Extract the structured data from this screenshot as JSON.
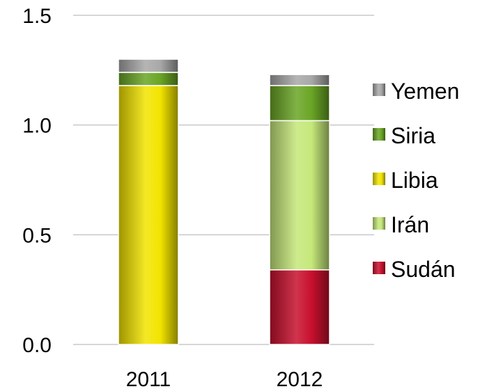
{
  "chart_data": {
    "type": "bar",
    "stacked": true,
    "categories": [
      "2011",
      "2012"
    ],
    "series": [
      {
        "name": "Sudán",
        "values": [
          0,
          0.34
        ],
        "color": "#c8102e"
      },
      {
        "name": "Irán",
        "values": [
          0,
          0.68
        ],
        "color": "#c5e87a"
      },
      {
        "name": "Libia",
        "values": [
          1.18,
          0
        ],
        "color": "#f2e400"
      },
      {
        "name": "Siria",
        "values": [
          0.06,
          0.16
        ],
        "color": "#6aa525"
      },
      {
        "name": "Yemen",
        "values": [
          0.06,
          0.05
        ],
        "color": "#a8a8a8"
      }
    ],
    "legend_order": [
      "Yemen",
      "Siria",
      "Libia",
      "Irán",
      "Sudán"
    ],
    "ylim": [
      0,
      1.5
    ],
    "yticks": [
      "0.0",
      "0.5",
      "1.0",
      "1.5"
    ],
    "grid": true,
    "legend": "right",
    "title": "",
    "xlabel": "",
    "ylabel": ""
  }
}
